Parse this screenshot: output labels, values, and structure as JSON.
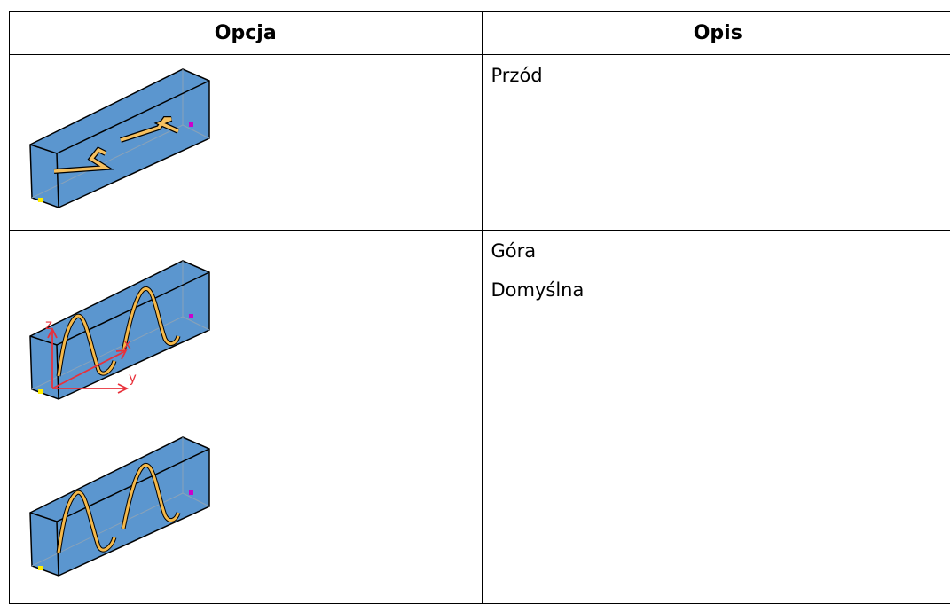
{
  "table": {
    "header": [
      "Opcja",
      "Opis"
    ],
    "rows": [
      {
        "description": [
          "Przód"
        ]
      },
      {
        "description": [
          "Góra",
          "Domyślna"
        ],
        "axis_labels": [
          "z",
          "x",
          "y"
        ]
      }
    ]
  }
}
